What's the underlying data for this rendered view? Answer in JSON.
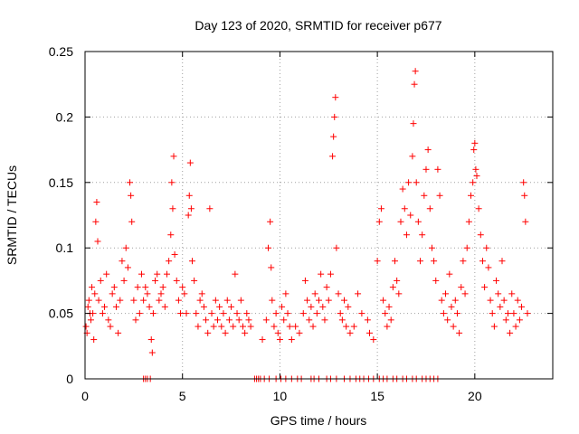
{
  "chart_data": {
    "type": "scatter",
    "title": "Day 123 of 2020, SRMTID for receiver p677",
    "xlabel": "GPS time / hours",
    "ylabel": "SRMTID / TECUs",
    "xlim": [
      0,
      24
    ],
    "ylim": [
      0,
      0.25
    ],
    "x_ticks": [
      0,
      5,
      10,
      15,
      20
    ],
    "x_tick_labels": [
      "0",
      "5",
      "10",
      "15",
      "20"
    ],
    "y_ticks": [
      0,
      0.05,
      0.1,
      0.15,
      0.2,
      0.25
    ],
    "y_tick_labels": [
      "0",
      "0.05",
      "0.1",
      "0.15",
      "0.2",
      "0.25"
    ],
    "grid": true,
    "marker": "+",
    "marker_color": "#ff0000",
    "series": [
      {
        "name": "SRMTID",
        "points": [
          [
            0.05,
            0.04
          ],
          [
            0.1,
            0.035
          ],
          [
            0.15,
            0.055
          ],
          [
            0.2,
            0.06
          ],
          [
            0.25,
            0.05
          ],
          [
            0.3,
            0.045
          ],
          [
            0.35,
            0.07
          ],
          [
            0.4,
            0.05
          ],
          [
            0.45,
            0.03
          ],
          [
            0.5,
            0.065
          ],
          [
            0.55,
            0.12
          ],
          [
            0.6,
            0.135
          ],
          [
            0.65,
            0.105
          ],
          [
            0.7,
            0.06
          ],
          [
            0.8,
            0.075
          ],
          [
            0.9,
            0.05
          ],
          [
            1.0,
            0.055
          ],
          [
            1.1,
            0.08
          ],
          [
            1.2,
            0.045
          ],
          [
            1.3,
            0.04
          ],
          [
            1.4,
            0.065
          ],
          [
            1.5,
            0.07
          ],
          [
            1.6,
            0.055
          ],
          [
            1.7,
            0.035
          ],
          [
            1.8,
            0.06
          ],
          [
            1.9,
            0.09
          ],
          [
            2.0,
            0.075
          ],
          [
            2.1,
            0.1
          ],
          [
            2.2,
            0.085
          ],
          [
            2.3,
            0.15
          ],
          [
            2.35,
            0.14
          ],
          [
            2.4,
            0.12
          ],
          [
            2.5,
            0.06
          ],
          [
            2.6,
            0.045
          ],
          [
            2.7,
            0.07
          ],
          [
            2.8,
            0.05
          ],
          [
            2.9,
            0.08
          ],
          [
            3.0,
            0.06
          ],
          [
            3.1,
            0.07
          ],
          [
            3.2,
            0.065
          ],
          [
            3.3,
            0.055
          ],
          [
            3.4,
            0.03
          ],
          [
            3.45,
            0.02
          ],
          [
            3.5,
            0.05
          ],
          [
            3.6,
            0.075
          ],
          [
            3.7,
            0.08
          ],
          [
            3.8,
            0.06
          ],
          [
            3.9,
            0.065
          ],
          [
            4.0,
            0.07
          ],
          [
            4.1,
            0.055
          ],
          [
            4.2,
            0.08
          ],
          [
            4.3,
            0.09
          ],
          [
            4.4,
            0.11
          ],
          [
            4.45,
            0.15
          ],
          [
            4.5,
            0.13
          ],
          [
            4.55,
            0.17
          ],
          [
            4.6,
            0.095
          ],
          [
            4.7,
            0.075
          ],
          [
            4.8,
            0.06
          ],
          [
            4.9,
            0.05
          ],
          [
            5.0,
            0.07
          ],
          [
            5.1,
            0.065
          ],
          [
            5.2,
            0.05
          ],
          [
            5.3,
            0.125
          ],
          [
            5.35,
            0.14
          ],
          [
            5.4,
            0.165
          ],
          [
            5.45,
            0.13
          ],
          [
            5.5,
            0.09
          ],
          [
            5.6,
            0.075
          ],
          [
            5.7,
            0.05
          ],
          [
            5.8,
            0.04
          ],
          [
            5.9,
            0.06
          ],
          [
            6.0,
            0.065
          ],
          [
            6.1,
            0.055
          ],
          [
            6.2,
            0.045
          ],
          [
            6.3,
            0.035
          ],
          [
            6.4,
            0.13
          ],
          [
            6.5,
            0.05
          ],
          [
            6.6,
            0.04
          ],
          [
            6.7,
            0.06
          ],
          [
            6.8,
            0.045
          ],
          [
            6.9,
            0.055
          ],
          [
            7.0,
            0.04
          ],
          [
            7.1,
            0.05
          ],
          [
            7.2,
            0.035
          ],
          [
            7.3,
            0.06
          ],
          [
            7.4,
            0.045
          ],
          [
            7.5,
            0.055
          ],
          [
            7.6,
            0.04
          ],
          [
            7.7,
            0.08
          ],
          [
            7.8,
            0.05
          ],
          [
            7.9,
            0.045
          ],
          [
            8.0,
            0.06
          ],
          [
            8.1,
            0.04
          ],
          [
            8.2,
            0.035
          ],
          [
            8.3,
            0.05
          ],
          [
            8.4,
            0.045
          ],
          [
            8.5,
            0.04
          ],
          [
            9.1,
            0.03
          ],
          [
            9.3,
            0.045
          ],
          [
            9.4,
            0.1
          ],
          [
            9.5,
            0.12
          ],
          [
            9.55,
            0.085
          ],
          [
            9.6,
            0.06
          ],
          [
            9.7,
            0.04
          ],
          [
            9.8,
            0.05
          ],
          [
            9.9,
            0.035
          ],
          [
            10.0,
            0.03
          ],
          [
            10.1,
            0.055
          ],
          [
            10.2,
            0.045
          ],
          [
            10.3,
            0.065
          ],
          [
            10.4,
            0.05
          ],
          [
            10.5,
            0.04
          ],
          [
            10.6,
            0.03
          ],
          [
            10.8,
            0.04
          ],
          [
            11.0,
            0.035
          ],
          [
            11.2,
            0.05
          ],
          [
            11.3,
            0.075
          ],
          [
            11.4,
            0.06
          ],
          [
            11.5,
            0.045
          ],
          [
            11.6,
            0.055
          ],
          [
            11.7,
            0.04
          ],
          [
            11.8,
            0.065
          ],
          [
            11.9,
            0.05
          ],
          [
            12.0,
            0.06
          ],
          [
            12.1,
            0.08
          ],
          [
            12.2,
            0.055
          ],
          [
            12.3,
            0.045
          ],
          [
            12.4,
            0.07
          ],
          [
            12.5,
            0.06
          ],
          [
            12.6,
            0.08
          ],
          [
            12.7,
            0.17
          ],
          [
            12.75,
            0.185
          ],
          [
            12.8,
            0.2
          ],
          [
            12.85,
            0.215
          ],
          [
            12.9,
            0.1
          ],
          [
            13.0,
            0.065
          ],
          [
            13.1,
            0.05
          ],
          [
            13.2,
            0.045
          ],
          [
            13.3,
            0.06
          ],
          [
            13.4,
            0.04
          ],
          [
            13.5,
            0.055
          ],
          [
            13.6,
            0.035
          ],
          [
            13.8,
            0.04
          ],
          [
            14.0,
            0.065
          ],
          [
            14.2,
            0.05
          ],
          [
            14.5,
            0.045
          ],
          [
            14.6,
            0.035
          ],
          [
            14.8,
            0.03
          ],
          [
            15.0,
            0.09
          ],
          [
            15.1,
            0.12
          ],
          [
            15.2,
            0.13
          ],
          [
            15.3,
            0.06
          ],
          [
            15.4,
            0.05
          ],
          [
            15.5,
            0.04
          ],
          [
            15.6,
            0.055
          ],
          [
            15.7,
            0.045
          ],
          [
            15.8,
            0.07
          ],
          [
            15.9,
            0.09
          ],
          [
            16.0,
            0.075
          ],
          [
            16.1,
            0.065
          ],
          [
            16.2,
            0.12
          ],
          [
            16.3,
            0.145
          ],
          [
            16.4,
            0.13
          ],
          [
            16.5,
            0.11
          ],
          [
            16.6,
            0.15
          ],
          [
            16.7,
            0.125
          ],
          [
            16.8,
            0.17
          ],
          [
            16.85,
            0.195
          ],
          [
            16.9,
            0.225
          ],
          [
            16.95,
            0.235
          ],
          [
            17.0,
            0.15
          ],
          [
            17.1,
            0.12
          ],
          [
            17.2,
            0.09
          ],
          [
            17.3,
            0.11
          ],
          [
            17.4,
            0.14
          ],
          [
            17.5,
            0.16
          ],
          [
            17.6,
            0.175
          ],
          [
            17.7,
            0.13
          ],
          [
            17.8,
            0.1
          ],
          [
            17.9,
            0.09
          ],
          [
            18.0,
            0.075
          ],
          [
            18.1,
            0.16
          ],
          [
            18.2,
            0.14
          ],
          [
            18.3,
            0.06
          ],
          [
            18.4,
            0.05
          ],
          [
            18.5,
            0.065
          ],
          [
            18.6,
            0.045
          ],
          [
            18.7,
            0.08
          ],
          [
            18.8,
            0.055
          ],
          [
            18.9,
            0.04
          ],
          [
            19.0,
            0.06
          ],
          [
            19.1,
            0.05
          ],
          [
            19.2,
            0.035
          ],
          [
            19.3,
            0.07
          ],
          [
            19.4,
            0.09
          ],
          [
            19.5,
            0.065
          ],
          [
            19.6,
            0.1
          ],
          [
            19.7,
            0.12
          ],
          [
            19.8,
            0.14
          ],
          [
            19.9,
            0.15
          ],
          [
            19.95,
            0.175
          ],
          [
            20.0,
            0.18
          ],
          [
            20.05,
            0.16
          ],
          [
            20.1,
            0.155
          ],
          [
            20.2,
            0.13
          ],
          [
            20.3,
            0.11
          ],
          [
            20.4,
            0.09
          ],
          [
            20.5,
            0.07
          ],
          [
            20.6,
            0.1
          ],
          [
            20.7,
            0.085
          ],
          [
            20.8,
            0.06
          ],
          [
            20.9,
            0.05
          ],
          [
            21.0,
            0.04
          ],
          [
            21.1,
            0.075
          ],
          [
            21.2,
            0.065
          ],
          [
            21.3,
            0.055
          ],
          [
            21.4,
            0.09
          ],
          [
            21.5,
            0.06
          ],
          [
            21.6,
            0.045
          ],
          [
            21.7,
            0.05
          ],
          [
            21.8,
            0.035
          ],
          [
            21.9,
            0.065
          ],
          [
            22.0,
            0.05
          ],
          [
            22.1,
            0.04
          ],
          [
            22.2,
            0.06
          ],
          [
            22.3,
            0.045
          ],
          [
            22.4,
            0.055
          ],
          [
            22.5,
            0.15
          ],
          [
            22.55,
            0.14
          ],
          [
            22.6,
            0.12
          ],
          [
            22.7,
            0.05
          ],
          [
            3.0,
            0
          ],
          [
            3.1,
            0
          ],
          [
            3.2,
            0
          ],
          [
            3.35,
            0
          ],
          [
            8.7,
            0
          ],
          [
            8.8,
            0
          ],
          [
            8.9,
            0
          ],
          [
            9.0,
            0
          ],
          [
            9.2,
            0
          ],
          [
            9.45,
            0
          ],
          [
            9.8,
            0
          ],
          [
            10.05,
            0
          ],
          [
            10.3,
            0
          ],
          [
            10.6,
            0
          ],
          [
            10.9,
            0
          ],
          [
            11.1,
            0
          ],
          [
            11.6,
            0
          ],
          [
            11.75,
            0
          ],
          [
            12.0,
            0
          ],
          [
            12.4,
            0
          ],
          [
            12.6,
            0
          ],
          [
            12.9,
            0
          ],
          [
            13.3,
            0
          ],
          [
            13.6,
            0
          ],
          [
            13.9,
            0
          ],
          [
            14.1,
            0
          ],
          [
            14.3,
            0
          ],
          [
            14.55,
            0
          ],
          [
            14.8,
            0
          ],
          [
            15.1,
            0
          ],
          [
            15.3,
            0
          ],
          [
            15.5,
            0
          ],
          [
            15.8,
            0
          ],
          [
            16.0,
            0
          ],
          [
            16.3,
            0
          ],
          [
            16.5,
            0
          ],
          [
            16.8,
            0
          ],
          [
            17.0,
            0
          ],
          [
            17.3,
            0
          ],
          [
            17.5,
            0
          ],
          [
            17.7,
            0
          ],
          [
            17.9,
            0
          ],
          [
            18.1,
            0
          ]
        ]
      }
    ]
  }
}
